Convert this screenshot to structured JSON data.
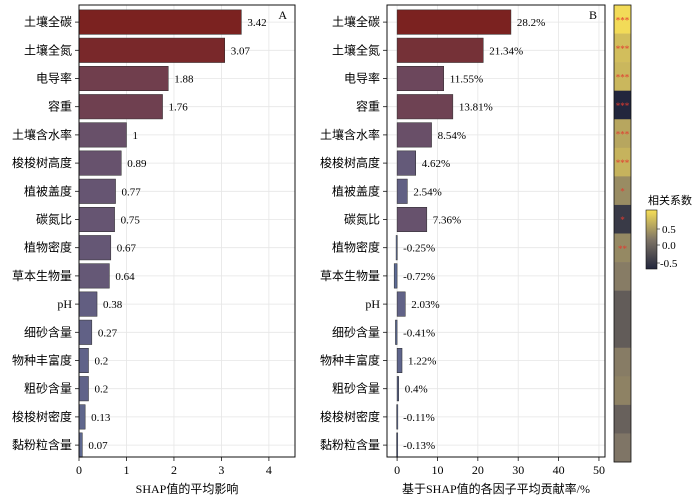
{
  "colors": {
    "bar_high": "#7b2220",
    "bar_low": "#5d6b95",
    "grid": "#e6e6e6",
    "star": "#e33a2f",
    "cbar_top": "#f7df57",
    "cbar_mid": "#7f7566",
    "cbar_bottom": "#22263d"
  },
  "colorbar": {
    "title": "相关系数",
    "ticks": [
      "0.5",
      "0.0",
      "-0.5"
    ]
  },
  "chart_data": [
    {
      "type": "bar",
      "orientation": "horizontal",
      "panel_label": "A",
      "xlabel": "SHAP值的平均影响",
      "xlim": [
        0,
        4.55
      ],
      "xticks": [
        0,
        1,
        2,
        3,
        4
      ],
      "grid": true,
      "categories": [
        "土壤全碳",
        "土壤全氮",
        "电导率",
        "容重",
        "土壤含水率",
        "梭梭树高度",
        "植被盖度",
        "碳氮比",
        "植物密度",
        "草本生物量",
        "pH",
        "细砂含量",
        "物种丰富度",
        "粗砂含量",
        "梭梭树密度",
        "黏粉粒含量"
      ],
      "values": [
        3.42,
        3.07,
        1.88,
        1.76,
        1,
        0.89,
        0.77,
        0.75,
        0.67,
        0.64,
        0.38,
        0.27,
        0.2,
        0.2,
        0.13,
        0.07
      ],
      "value_labels": [
        "3.42",
        "3.07",
        "1.88",
        "1.76",
        "1",
        "0.89",
        "0.77",
        "0.75",
        "0.67",
        "0.64",
        "0.38",
        "0.27",
        "0.2",
        "0.2",
        "0.13",
        "0.07"
      ]
    },
    {
      "type": "bar",
      "orientation": "horizontal",
      "panel_label": "B",
      "xlabel": "基于SHAP值的各因子平均贡献率/%",
      "xlim": [
        -2.5,
        51.5
      ],
      "xticks": [
        0,
        10,
        20,
        30,
        40,
        50
      ],
      "grid": true,
      "categories": [
        "土壤全碳",
        "土壤全氮",
        "电导率",
        "容重",
        "土壤含水率",
        "梭梭树高度",
        "植被盖度",
        "碳氮比",
        "植物密度",
        "草本生物量",
        "pH",
        "细砂含量",
        "物种丰富度",
        "粗砂含量",
        "梭梭树密度",
        "黏粉粒含量"
      ],
      "values": [
        28.2,
        21.34,
        11.55,
        13.81,
        8.54,
        4.62,
        2.54,
        7.36,
        -0.25,
        -0.72,
        2.03,
        -0.41,
        1.22,
        0.4,
        -0.11,
        -0.13
      ],
      "value_labels": [
        "28.2%",
        "21.34%",
        "11.55%",
        "13.81%",
        "8.54%",
        "4.62%",
        "2.54%",
        "7.36%",
        "-0.25%",
        "-0.72%",
        "2.03%",
        "-0.41%",
        "1.22%",
        "0.4%",
        "-0.11%",
        "-0.13%"
      ]
    },
    {
      "type": "heatmap",
      "categories": [
        "土壤全碳",
        "土壤全氮",
        "电导率",
        "容重",
        "土壤含水率",
        "梭梭树高度",
        "植被盖度",
        "碳氮比",
        "植物密度",
        "草本生物量",
        "pH",
        "细砂含量",
        "物种丰富度",
        "粗砂含量",
        "梭梭树密度",
        "黏粉粒含量"
      ],
      "values": [
        0.82,
        0.6,
        0.55,
        -0.75,
        0.42,
        0.52,
        0.22,
        -0.55,
        0.2,
        0.1,
        -0.2,
        -0.2,
        0.1,
        0.15,
        -0.15,
        0.05
      ],
      "significance": [
        "***",
        "***",
        "***",
        "***",
        "***",
        "***",
        "*",
        "*",
        "**",
        "",
        "",
        "",
        "",
        "",
        "",
        ""
      ],
      "vlim": [
        -0.75,
        0.85
      ]
    }
  ]
}
